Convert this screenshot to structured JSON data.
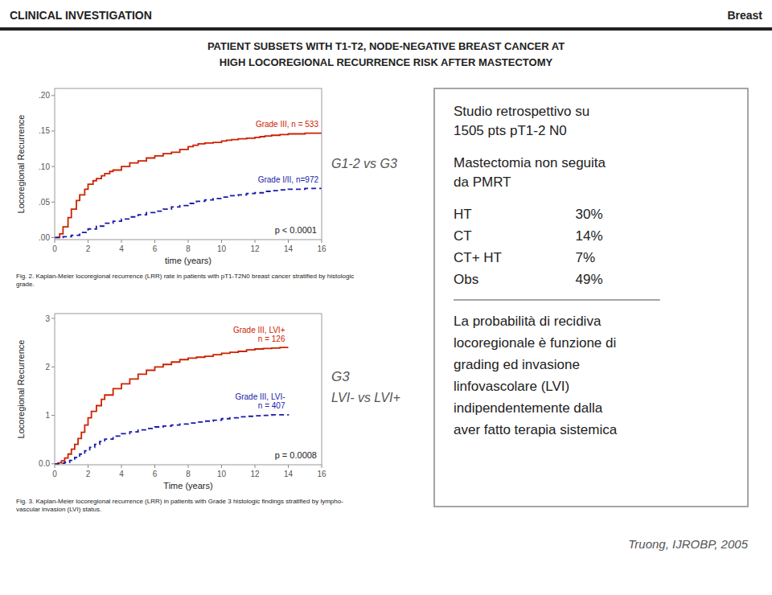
{
  "chart_data": [
    {
      "type": "step",
      "title": "PATIENT SUBSETS WITH T1-T2, NODE-NEGATIVE BREAST CANCER AT",
      "subtitle": "HIGH LOCOREGIONAL RECURRENCE RISK AFTER MASTECTOMY",
      "x_label": "time (years)",
      "y_label": "Locoregional Recurrence",
      "xlim": [
        0,
        16
      ],
      "xticks": [
        0,
        2,
        4,
        6,
        8,
        10,
        12,
        14,
        16
      ],
      "ylim": [
        -0.003,
        0.21
      ],
      "yticks": [
        {
          "value": 0.0,
          "label": ".00"
        },
        {
          "value": 0.05,
          "label": ".05"
        },
        {
          "value": 0.1,
          "label": ".10"
        },
        {
          "value": 0.15,
          "label": ".15"
        },
        {
          "value": 0.2,
          "label": ".20"
        }
      ],
      "grid": false,
      "series": [
        {
          "name": "Grade III, n = 533",
          "color": "#cc2200",
          "line_style": "solid",
          "x": [
            0,
            0.3,
            0.5,
            0.8,
            1,
            1.3,
            1.5,
            1.8,
            2,
            2.3,
            2.5,
            2.8,
            3,
            3.3,
            3.5,
            4,
            4.5,
            5,
            5.5,
            6,
            6.5,
            7,
            7.5,
            8,
            8.3,
            8.6,
            9,
            9.5,
            10,
            10.3,
            10.6,
            11,
            11.5,
            12,
            12.3,
            12.6,
            13,
            13.5,
            14,
            15,
            16
          ],
          "values": [
            0,
            0.005,
            0.015,
            0.028,
            0.04,
            0.052,
            0.06,
            0.068,
            0.075,
            0.08,
            0.083,
            0.087,
            0.09,
            0.093,
            0.095,
            0.1,
            0.105,
            0.108,
            0.112,
            0.115,
            0.118,
            0.12,
            0.124,
            0.128,
            0.13,
            0.132,
            0.133,
            0.134,
            0.136,
            0.137,
            0.138,
            0.139,
            0.14,
            0.141,
            0.142,
            0.143,
            0.144,
            0.145,
            0.146,
            0.147,
            0.148
          ]
        },
        {
          "name": "Grade I/II, n=972",
          "color": "#1a1aaa",
          "line_style": "dashed",
          "x": [
            0,
            0.5,
            1,
            1.5,
            2,
            2.5,
            3,
            3.5,
            4,
            4.5,
            5,
            5.5,
            6,
            6.5,
            7,
            7.5,
            8,
            8.5,
            9,
            9.5,
            10,
            10.5,
            11,
            11.5,
            12,
            12.5,
            13,
            13.5,
            14,
            15,
            16
          ],
          "values": [
            0,
            0.001,
            0.003,
            0.007,
            0.012,
            0.016,
            0.02,
            0.023,
            0.026,
            0.029,
            0.032,
            0.035,
            0.037,
            0.04,
            0.043,
            0.045,
            0.048,
            0.051,
            0.053,
            0.055,
            0.057,
            0.059,
            0.06,
            0.062,
            0.063,
            0.065,
            0.066,
            0.067,
            0.068,
            0.069,
            0.07
          ]
        }
      ],
      "annotations": [
        "p < 0.0001",
        "G1-2 vs G3",
        "Fig. 2. Kaplan-Meier locoregional recurrence (LRR) rate in patients with pT1-T2N0 breast cancer stratified by histologic\ngrade.",
        "CLINICAL INVESTIGATION",
        "Breast",
        "Studio retrospettivo su",
        "1505 pts pT1-2 N0",
        "Mastectomia non seguita",
        "da PMRT",
        "HT",
        "30%",
        "CT",
        "14%",
        "CT+ HT",
        "7%",
        "Obs",
        "49%",
        "La probabilità di recidiva\nlocoregionale è funzione di\ngrading ed invasione\nlinfovascolare (LVI)\nindipendentemente dalla\naver fatto terapia sistemica",
        "Truong, IJROBP, 2005"
      ]
    },
    {
      "type": "step",
      "x_label": "Time (years)",
      "y_label": "Locoregional Recurrence",
      "xlim": [
        0,
        16
      ],
      "xticks": [
        0,
        2,
        4,
        6,
        8,
        10,
        12,
        14,
        16
      ],
      "ylim": [
        -0.02,
        3.1
      ],
      "yticks": [
        {
          "value": 0.0,
          "label": "0.0"
        },
        1,
        2,
        3
      ],
      "grid": false,
      "series": [
        {
          "name": "Grade III, LVI+\nn = 126",
          "color": "#cc2200",
          "line_style": "solid",
          "x": [
            0,
            0.2,
            0.4,
            0.6,
            0.8,
            1.0,
            1.2,
            1.4,
            1.6,
            1.8,
            2.0,
            2.2,
            2.5,
            2.8,
            3.0,
            3.5,
            4.0,
            4.5,
            5.0,
            5.5,
            6.0,
            6.5,
            7.0,
            7.5,
            8.0,
            8.5,
            9.0,
            9.5,
            10,
            10.5,
            11,
            11.5,
            12,
            12.5,
            13,
            13.5,
            14
          ],
          "values": [
            0,
            0.02,
            0.06,
            0.12,
            0.2,
            0.3,
            0.4,
            0.52,
            0.65,
            0.8,
            0.95,
            1.08,
            1.2,
            1.33,
            1.42,
            1.55,
            1.65,
            1.75,
            1.85,
            1.93,
            2.0,
            2.05,
            2.1,
            2.15,
            2.18,
            2.2,
            2.22,
            2.25,
            2.28,
            2.3,
            2.32,
            2.35,
            2.37,
            2.38,
            2.39,
            2.4,
            2.4
          ]
        },
        {
          "name": "Grade III, LVI-\nn = 407",
          "color": "#1a1aaa",
          "line_style": "dashed",
          "x": [
            0,
            0.3,
            0.6,
            0.9,
            1.2,
            1.5,
            1.8,
            2.1,
            2.4,
            2.7,
            3.0,
            3.5,
            4.0,
            4.5,
            5.0,
            5.5,
            6.0,
            6.5,
            7.0,
            7.5,
            8.0,
            8.5,
            9.0,
            9.5,
            10,
            10.5,
            11,
            11.5,
            12,
            12.5,
            13,
            13.5,
            14
          ],
          "values": [
            0,
            0.01,
            0.03,
            0.07,
            0.13,
            0.2,
            0.27,
            0.34,
            0.4,
            0.46,
            0.51,
            0.57,
            0.62,
            0.66,
            0.7,
            0.73,
            0.76,
            0.78,
            0.8,
            0.82,
            0.84,
            0.86,
            0.88,
            0.9,
            0.93,
            0.95,
            0.97,
            0.98,
            0.99,
            1.0,
            1.01,
            1.01,
            1.02
          ]
        }
      ],
      "annotations": [
        "p = 0.0008",
        "G3",
        "LVI- vs LVI+",
        "Fig. 3. Kaplan-Meier locoregional recurrence (LRR) in patients with Grade 3 histologic findings stratified by lympho-\nvascular invasion (LVI) status."
      ]
    }
  ]
}
